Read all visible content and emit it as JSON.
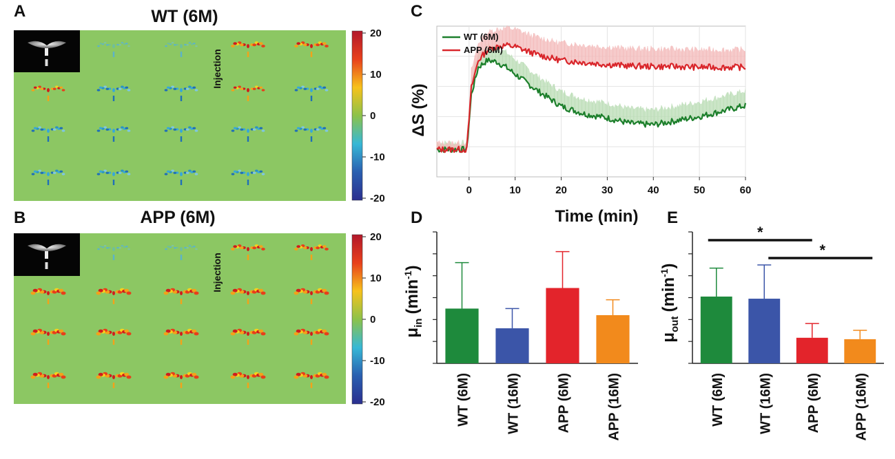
{
  "panels": {
    "a": {
      "letter": "A",
      "title": "WT (6M)",
      "injection_label": "Injection"
    },
    "b": {
      "letter": "B",
      "title": "APP (6M)",
      "injection_label": "Injection"
    },
    "c": {
      "letter": "C"
    },
    "d": {
      "letter": "D"
    },
    "e": {
      "letter": "E"
    }
  },
  "colorbar": {
    "ticks": [
      "20",
      "10",
      "0",
      "-10",
      "-20"
    ],
    "colors": [
      "#b2182b",
      "#e8401c",
      "#f7c21b",
      "#8cc24a",
      "#37b8d6",
      "#2a5fb0",
      "#2b2f8f"
    ]
  },
  "colors": {
    "map_bg": "#8cc763",
    "wt6": "#1e8a3c",
    "wt16": "#3b55a8",
    "app6": "#e3242b",
    "app16": "#f28a1c",
    "wt_line": "#1c7f2b",
    "app_line": "#d9262b"
  },
  "chart_data": [
    {
      "id": "C",
      "type": "line",
      "xlabel": "Time (min)",
      "ylabel": "ΔS (%)",
      "xticks": [
        "0",
        "10",
        "20",
        "30",
        "40",
        "50",
        "60"
      ],
      "xlim": [
        -7,
        60
      ],
      "ylim": [
        -4,
        18
      ],
      "grid": true,
      "legend_position": "top-left",
      "series": [
        {
          "name": "WT (6M)",
          "x": [
            -7,
            -3,
            -0.5,
            0.5,
            2,
            4,
            6,
            8,
            10,
            12,
            15,
            18,
            20,
            25,
            30,
            35,
            40,
            45,
            50,
            55,
            60
          ],
          "y": [
            0,
            0,
            0,
            8,
            12,
            13,
            12.8,
            12,
            11,
            10,
            8.5,
            7.2,
            6.3,
            5.2,
            4.6,
            3.8,
            3.6,
            4.2,
            4.8,
            5.6,
            6.4
          ]
        },
        {
          "name": "APP (6M)",
          "x": [
            -7,
            -3,
            -0.5,
            0.5,
            2,
            4,
            6,
            8,
            10,
            12,
            15,
            18,
            20,
            25,
            30,
            35,
            40,
            45,
            50,
            55,
            60
          ],
          "y": [
            0,
            0,
            0,
            9,
            13,
            14.5,
            15,
            15.2,
            15,
            14.5,
            13.8,
            13.3,
            13,
            12.7,
            12.4,
            12.2,
            12.1,
            12.1,
            12.0,
            12.0,
            12.0
          ]
        }
      ]
    },
    {
      "id": "D",
      "type": "bar",
      "ylabel_main": "μ",
      "ylabel_sub": "in",
      "ylabel_unit": "(min",
      "ylabel_exp": "-1",
      "ylabel_close": ")",
      "categories": [
        "WT (6M)",
        "WT (16M)",
        "APP (6M)",
        "APP (16M)"
      ],
      "values": [
        1.25,
        0.8,
        1.72,
        1.1
      ],
      "errors": [
        1.05,
        0.45,
        0.83,
        0.35
      ],
      "ylim": [
        0,
        3
      ]
    },
    {
      "id": "E",
      "type": "bar",
      "ylabel_main": "μ",
      "ylabel_sub": "out",
      "ylabel_unit": "(min",
      "ylabel_exp": "-1",
      "ylabel_close": ")",
      "categories": [
        "WT (6M)",
        "WT (16M)",
        "APP (6M)",
        "APP (16M)"
      ],
      "values": [
        1.88,
        1.82,
        0.72,
        0.68
      ],
      "errors": [
        0.8,
        0.95,
        0.4,
        0.25
      ],
      "ylim": [
        0,
        3.7
      ],
      "significance": [
        {
          "from": "WT (6M)",
          "to": "APP (6M)",
          "label": "*"
        },
        {
          "from": "WT (16M)",
          "to": "APP (16M)",
          "label": "*"
        }
      ]
    }
  ]
}
